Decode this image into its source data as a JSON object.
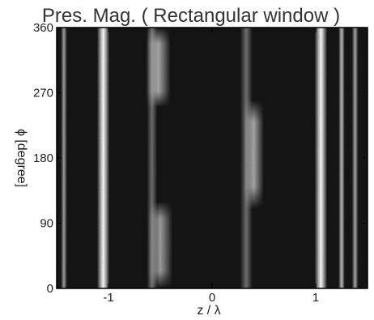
{
  "chart_data": {
    "type": "heatmap",
    "title": "Pres. Mag. ( Rectangular window )",
    "xlabel": "z / λ",
    "ylabel": "ϕ [degree]",
    "xlim": [
      -1.5,
      1.5
    ],
    "ylim": [
      0,
      360
    ],
    "xticks": [
      -1,
      0,
      1
    ],
    "xtick_labels": [
      "-1",
      "0",
      "1"
    ],
    "yticks": [
      0,
      90,
      180,
      270,
      360
    ],
    "ytick_labels": [
      "0",
      "90",
      "180",
      "270",
      "360"
    ],
    "colormap": "grayscale",
    "grid": false,
    "legend": "none",
    "bands": [
      {
        "z_center": -1.43,
        "z_width": 0.03,
        "phi_min": 0,
        "phi_max": 360,
        "intensity": 0.55
      },
      {
        "z_center": -1.05,
        "z_width": 0.06,
        "phi_min": 0,
        "phi_max": 360,
        "intensity": 1.0
      },
      {
        "z_center": -0.52,
        "z_width": 0.12,
        "phi_min": 250,
        "phi_max": 360,
        "intensity": 0.6
      },
      {
        "z_center": -0.5,
        "z_width": 0.12,
        "phi_min": 0,
        "phi_max": 120,
        "intensity": 0.55
      },
      {
        "z_center": -0.58,
        "z_width": 0.05,
        "phi_min": 0,
        "phi_max": 360,
        "intensity": 0.35
      },
      {
        "z_center": 0.4,
        "z_width": 0.1,
        "phi_min": 110,
        "phi_max": 260,
        "intensity": 0.6
      },
      {
        "z_center": 0.33,
        "z_width": 0.06,
        "phi_min": 0,
        "phi_max": 360,
        "intensity": 0.35
      },
      {
        "z_center": 1.05,
        "z_width": 0.06,
        "phi_min": 0,
        "phi_max": 360,
        "intensity": 1.0
      },
      {
        "z_center": 1.25,
        "z_width": 0.03,
        "phi_min": 0,
        "phi_max": 360,
        "intensity": 0.7
      },
      {
        "z_center": 1.38,
        "z_width": 0.03,
        "phi_min": 0,
        "phi_max": 360,
        "intensity": 0.6
      }
    ]
  }
}
